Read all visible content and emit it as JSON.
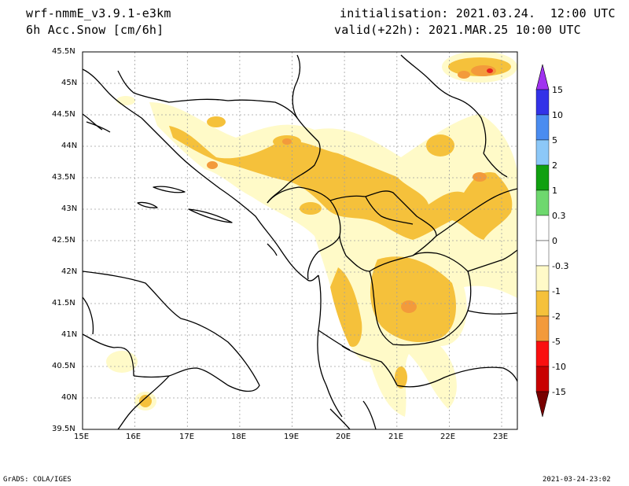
{
  "header": {
    "model": "wrf-nmmE_v3.9.1-e3km",
    "field": "6h Acc.Snow [cm/6h]",
    "init": "initialisation: 2021.03.24.  12:00 UTC",
    "valid": "valid(+22h): 2021.MAR.25 10:00 UTC"
  },
  "map": {
    "lat_ticks": [
      "45.5N",
      "45N",
      "44.5N",
      "44N",
      "43.5N",
      "43N",
      "42.5N",
      "42N",
      "41.5N",
      "41N",
      "40.5N",
      "40N",
      "39.5N"
    ],
    "lon_ticks": [
      "15E",
      "16E",
      "17E",
      "18E",
      "19E",
      "20E",
      "21E",
      "22E",
      "23E"
    ],
    "lon_range": [
      15,
      23.3
    ],
    "lat_range": [
      39.5,
      45.5
    ],
    "grid": true,
    "snow_colors": {
      "light": "#fffac8",
      "moderate": "#f5c13b",
      "heavy": "#f39a3b",
      "red": "#e8241f"
    }
  },
  "colorbar": {
    "labels": [
      "15",
      "10",
      "5",
      "2",
      "1",
      "0.3",
      "0",
      "-0.3",
      "-1",
      "-2",
      "-5",
      "-10",
      "-15"
    ],
    "colors": [
      "#3232e8",
      "#4a8cf0",
      "#8cc8f8",
      "#10a010",
      "#6ed86e",
      "#ffffff",
      "#ffffff",
      "#fffac8",
      "#f5c13b",
      "#f39a3b",
      "#fa0f0f",
      "#c80000",
      "#780000"
    ],
    "top_arrow_color": "#a032f0",
    "bottom_arrow_color": "#780000"
  },
  "footer": {
    "left": "GrADS: COLA/IGES",
    "right": "2021-03-24-23:02"
  }
}
